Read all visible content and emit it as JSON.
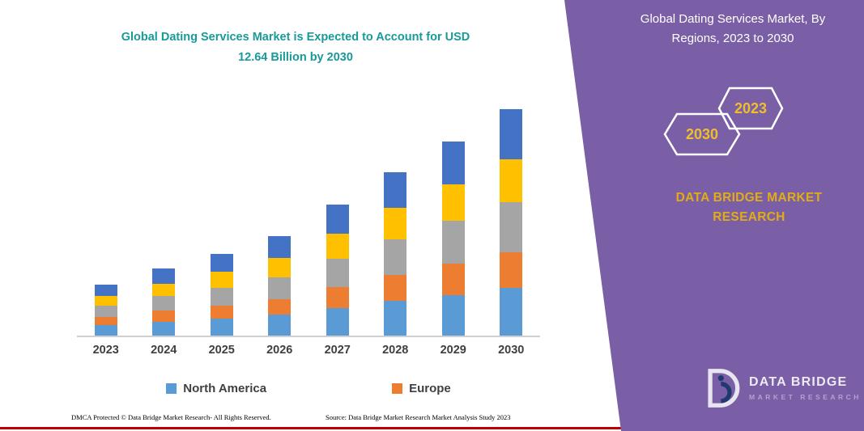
{
  "left_panel": {
    "title_line1": "Global Dating Services Market is Expected to Account for USD",
    "title_line2": "12.64 Billion by 2030",
    "footer_dmca": "DMCA Protected © Data Bridge Market Research-  All Rights Reserved.",
    "footer_source": "Source: Data Bridge Market Research  Market Analysis Study 2023"
  },
  "right_panel": {
    "heading_line1": "Global Dating Services Market, By",
    "heading_line2": "Regions, 2023 to 2030",
    "hexagon_back_label": "2030",
    "hexagon_front_label": "2023",
    "brand_line1": "DATA BRIDGE MARKET",
    "brand_line2": "RESEARCH",
    "logo_title": "DATA BRIDGE",
    "logo_subtitle": "MARKET RESEARCH",
    "background_color": "#7A5FA6",
    "accent_gold": "#E8B32C"
  },
  "colors": {
    "title_teal": "#189A98",
    "red_divider": "#C00000",
    "purple_panel": "#7A5FA6"
  },
  "chart_data": {
    "type": "bar",
    "stacked": true,
    "title": "Global Dating Services Market is Expected to Account for USD 12.64 Billion by 2030",
    "unit": "USD Billion",
    "categories": [
      "2023",
      "2024",
      "2025",
      "2026",
      "2027",
      "2028",
      "2029",
      "2030"
    ],
    "series": [
      {
        "name": "North America",
        "color": "#5B9BD5",
        "values": [
          0.6,
          0.78,
          0.95,
          1.16,
          1.53,
          1.92,
          2.28,
          2.65
        ]
      },
      {
        "name": "Europe",
        "color": "#ED7D31",
        "values": [
          0.46,
          0.6,
          0.73,
          0.89,
          1.17,
          1.46,
          1.73,
          2.02
        ]
      },
      {
        "name": "Unlabeled region (gray)",
        "color": "#A5A5A5",
        "values": [
          0.63,
          0.82,
          1.0,
          1.22,
          1.61,
          2.01,
          2.39,
          2.78
        ]
      },
      {
        "name": "Unlabeled region (yellow)",
        "color": "#FFC000",
        "values": [
          0.54,
          0.71,
          0.86,
          1.05,
          1.39,
          1.73,
          2.06,
          2.4
        ]
      },
      {
        "name": "Unlabeled region (dark blue)",
        "color": "#4472C4",
        "values": [
          0.63,
          0.82,
          1.0,
          1.22,
          1.61,
          2.01,
          2.38,
          2.79
        ]
      }
    ],
    "totals": [
      2.86,
      3.72,
      4.54,
      5.54,
      7.3,
      9.12,
      10.84,
      12.64
    ],
    "legend": [
      {
        "label": "North America",
        "color": "#5B9BD5"
      },
      {
        "label": "Europe",
        "color": "#ED7D31"
      }
    ],
    "legend_position": "bottom",
    "xlabel": "",
    "ylabel": "",
    "ylim": [
      0,
      13.4
    ],
    "gridlines": false,
    "value_labels": false
  }
}
